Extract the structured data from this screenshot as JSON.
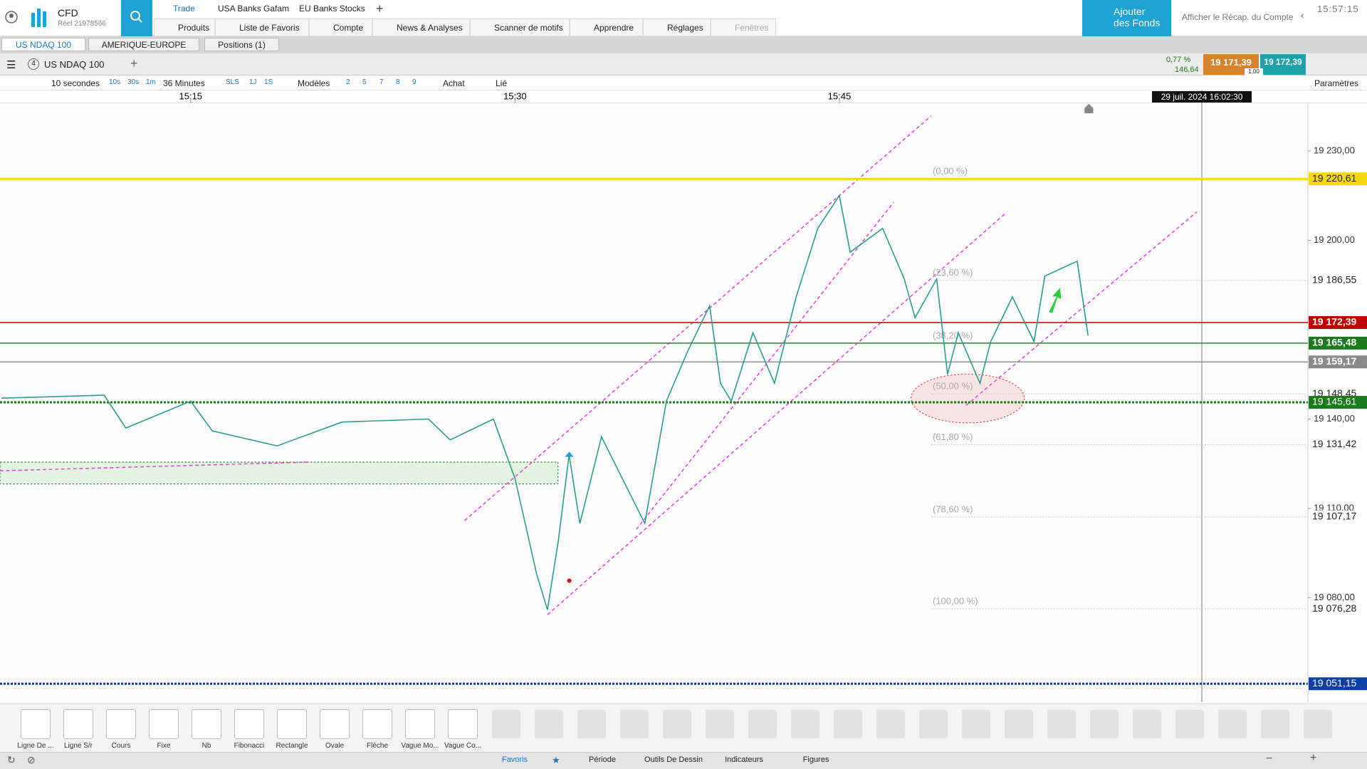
{
  "app": {
    "product": "CFD",
    "account": "Réel 21978566",
    "add_funds": "Ajouter des Fonds",
    "summary": "Afficher le Récap. du Compte",
    "clock": "15:57:15"
  },
  "top_tabs": [
    "Trade",
    "USA Banks Gafam",
    "EU Banks Stocks"
  ],
  "menu": [
    "Produits",
    "Liste de Favoris",
    "Compte",
    "News & Analyses",
    "Scanner de motifs",
    "Apprendre",
    "Réglages",
    "Fenêtres"
  ],
  "workspace_tabs": [
    "US NDAQ 100",
    "AMERIQUE-EUROPE",
    "Positions (1)"
  ],
  "instrument": {
    "count": "4",
    "name": "US NDAQ 100",
    "change": "0,77 %",
    "change_points": "146,64",
    "bid": "19 171,39",
    "spread": "1,00",
    "ask": "19 172,39"
  },
  "toolbar": {
    "interval": "10 secondes",
    "quick_intervals": [
      "10s",
      "30s",
      "1m"
    ],
    "range": "36 Minutes",
    "periods": [
      "SLS",
      "1J",
      "1S"
    ],
    "templates": "Modèles",
    "layouts": [
      "2",
      "5",
      "7",
      "8",
      "9"
    ],
    "trade": "Achat",
    "link": "Lié",
    "settings": "Paramètres"
  },
  "tools": [
    "Ligne De ...",
    "Ligne S/r",
    "Cours",
    "Fixe",
    "Nb",
    "Fibonacci",
    "Rectangle",
    "Ovale",
    "Flèche",
    "Vague Mo...",
    "Vague Co..."
  ],
  "bottom_tabs": [
    "Favoris",
    "Période",
    "Outils De Dessin",
    "Indicateurs",
    "Figures"
  ],
  "chart_data": {
    "type": "line",
    "color": "#2a9d8f",
    "xlim": [
      "15:06:11",
      "16:06:40"
    ],
    "xticks": [
      "15:15",
      "15:30",
      "15:45"
    ],
    "ylim": [
      19045,
      19246
    ],
    "yticks": [
      {
        "value": 19080,
        "label": "19 080,00"
      },
      {
        "value": 19110,
        "label": "19 110,00"
      },
      {
        "value": 19140,
        "label": "19 140,00"
      },
      {
        "value": 19200,
        "label": "19 200,00"
      },
      {
        "value": 19230,
        "label": "19 230,00"
      }
    ],
    "crosshair_label": "29 juil. 2024 16:02:30",
    "x": [
      "15:06:15",
      "15:11:00",
      "15:12:00",
      "15:15:00",
      "15:16:00",
      "15:19:00",
      "15:22:00",
      "15:26:00",
      "15:27:00",
      "15:29:00",
      "15:30:00",
      "15:31:00",
      "15:31:30",
      "15:32:00",
      "15:32:30",
      "15:33:00",
      "15:34:00",
      "15:36:00",
      "15:37:00",
      "15:38:00",
      "15:39:00",
      "15:39:30",
      "15:40:00",
      "15:41:00",
      "15:42:00",
      "15:43:00",
      "15:44:00",
      "15:45:00",
      "15:45:30",
      "15:47:00",
      "15:48:00",
      "15:48:30",
      "15:49:30",
      "15:50:00",
      "15:50:30",
      "15:51:30",
      "15:52:00",
      "15:53:00",
      "15:54:00",
      "15:54:30",
      "15:56:00",
      "15:56:30"
    ],
    "values": [
      19147,
      19148,
      19137,
      19146,
      19136,
      19131,
      19139,
      19140,
      19133,
      19140,
      19120,
      19088,
      19076,
      19099,
      19128,
      19105,
      19134,
      19105,
      19146,
      19163,
      19178,
      19152,
      19146,
      19169,
      19152,
      19181,
      19204,
      19215,
      19196,
      19204,
      19187,
      19174,
      19187,
      19155,
      19169,
      19152,
      19166,
      19181,
      19166,
      19188,
      19193,
      19168
    ],
    "levels": [
      {
        "value": 19220.61,
        "label": "19 220,61",
        "color": "#f5d90a",
        "line": "bold",
        "fib": "(0,00 %)"
      },
      {
        "value": 19186.55,
        "label": "19 186,55",
        "color": "#c8c8c8",
        "line": "fib",
        "fib": "(23,60 %)"
      },
      {
        "value": 19172.39,
        "label": "19 172,39",
        "color": "#c00000",
        "line": "solid"
      },
      {
        "value": 19165.48,
        "label": "19 165,48",
        "color": "#1b7a1b",
        "line": "solid",
        "fib": "(38,20 %)"
      },
      {
        "value": 19159.17,
        "label": "19 159,17",
        "color": "#8a8a8a",
        "line": "solid"
      },
      {
        "value": 19148.45,
        "label": "19 148,45",
        "color": "#c8c8c8",
        "line": "fib",
        "fib": "(50,00 %)"
      },
      {
        "value": 19145.61,
        "label": "19 145,61",
        "color": "#1b7a1b",
        "line": "dotted"
      },
      {
        "value": 19131.42,
        "label": "19 131,42",
        "color": "#c8c8c8",
        "line": "fib",
        "fib": "(61,80 %)"
      },
      {
        "value": 19107.17,
        "label": "19 107,17",
        "color": "#c8c8c8",
        "line": "fib",
        "fib": "(78,60 %)"
      },
      {
        "value": 19076.28,
        "label": "19 076,28",
        "color": "#c8c8c8",
        "line": "fib",
        "fib": "(100,00 %)"
      },
      {
        "value": 19051.15,
        "label": "19 051,15",
        "color": "#0d3fa6",
        "line": "dotted"
      }
    ]
  }
}
